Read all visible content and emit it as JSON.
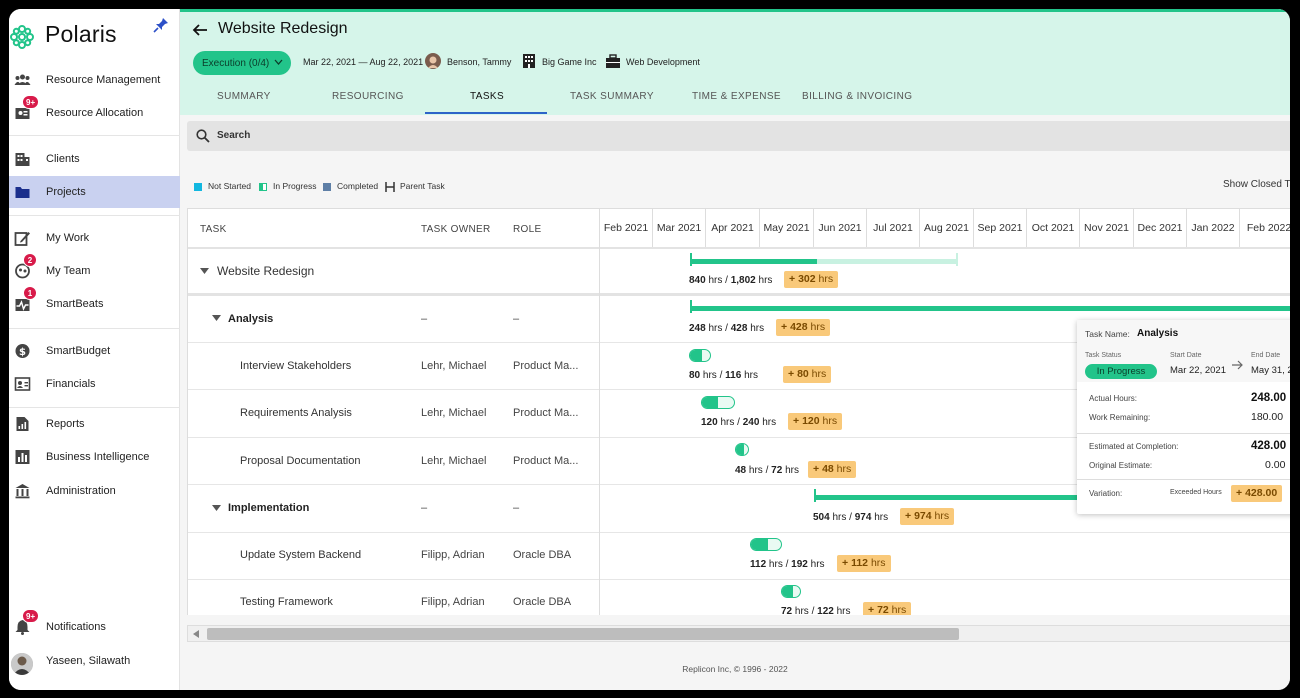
{
  "app": {
    "name": "Polaris"
  },
  "sidebar": {
    "items": [
      {
        "label": "Resource Management",
        "icon": "people-icon"
      },
      {
        "label": "Resource Allocation",
        "icon": "allocation-icon",
        "badge": "9+"
      },
      {
        "label": "Clients",
        "icon": "building-icon"
      },
      {
        "label": "Projects",
        "icon": "folder-icon",
        "active": true
      },
      {
        "label": "My Work",
        "icon": "edit-icon"
      },
      {
        "label": "My Team",
        "icon": "team-icon",
        "badge": "2"
      },
      {
        "label": "SmartBeats",
        "icon": "heartbeat-icon",
        "badge": "1"
      },
      {
        "label": "SmartBudget",
        "icon": "dollar-icon"
      },
      {
        "label": "Financials",
        "icon": "financials-icon"
      },
      {
        "label": "Reports",
        "icon": "report-icon"
      },
      {
        "label": "Business Intelligence",
        "icon": "chart-icon"
      },
      {
        "label": "Administration",
        "icon": "bank-icon"
      }
    ],
    "notifications": {
      "label": "Notifications",
      "badge": "9+"
    },
    "user": {
      "label": "Yaseen, Silawath"
    }
  },
  "header": {
    "title": "Website Redesign",
    "phase": "Execution (0/4)",
    "dates": "Mar 22, 2021 — Aug 22, 2021",
    "owner": "Benson, Tammy",
    "client": "Big Game Inc",
    "program": "Web Development",
    "tabs": [
      "SUMMARY",
      "RESOURCING",
      "TASKS",
      "TASK SUMMARY",
      "TIME & EXPENSE",
      "BILLING & INVOICING"
    ],
    "active_tab": "TASKS"
  },
  "search": {
    "placeholder": "Search"
  },
  "legend": {
    "not_started": "Not Started",
    "in_progress": "In Progress",
    "completed": "Completed",
    "parent_task": "Parent Task"
  },
  "show_closed": "Show Closed Ta",
  "columns": {
    "task": "TASK",
    "owner": "TASK OWNER",
    "role": "ROLE"
  },
  "months": [
    "Feb 2021",
    "Mar 2021",
    "Apr 2021",
    "May 2021",
    "Jun 2021",
    "Jul 2021",
    "Aug 2021",
    "Sep 2021",
    "Oct 2021",
    "Nov 2021",
    "Dec 2021",
    "Jan 2022",
    "Feb 2022"
  ],
  "rows": [
    {
      "name": "Website Redesign",
      "owner": "",
      "role": "",
      "actual": "840",
      "estimate": "1,802",
      "over": "302"
    },
    {
      "name": "Analysis",
      "owner": "–",
      "role": "–",
      "actual": "248",
      "estimate": "428",
      "over": "428"
    },
    {
      "name": "Interview Stakeholders",
      "owner": "Lehr, Michael",
      "role": "Product Ma...",
      "actual": "80",
      "estimate": "116",
      "over": "80"
    },
    {
      "name": "Requirements Analysis",
      "owner": "Lehr, Michael",
      "role": "Product Ma...",
      "actual": "120",
      "estimate": "240",
      "over": "120"
    },
    {
      "name": "Proposal Documentation",
      "owner": "Lehr, Michael",
      "role": "Product Ma...",
      "actual": "48",
      "estimate": "72",
      "over": "48"
    },
    {
      "name": "Implementation",
      "owner": "–",
      "role": "–",
      "actual": "504",
      "estimate": "974",
      "over": "974"
    },
    {
      "name": "Update System Backend",
      "owner": "Filipp, Adrian",
      "role": "Oracle DBA",
      "actual": "112",
      "estimate": "192",
      "over": "112"
    },
    {
      "name": "Testing Framework",
      "owner": "Filipp, Adrian",
      "role": "Oracle DBA",
      "actual": "72",
      "estimate": "122",
      "over": "72"
    }
  ],
  "hrs_unit": "hrs",
  "tooltip": {
    "task_name_label": "Task Name:",
    "task_name": "Analysis",
    "status_label": "Task Status",
    "status": "In Progress",
    "start_label": "Start Date",
    "start": "Mar 22, 2021",
    "end_label": "End Date",
    "end": "May 31, 2",
    "actual_label": "Actual Hours:",
    "actual": "248.00",
    "remaining_label": "Work Remaining:",
    "remaining": "180.00",
    "eac_label": "Estimated at Completion:",
    "eac": "428.00",
    "orig_label": "Original Estimate:",
    "orig": "0.00",
    "variation_label": "Variation:",
    "exceeded_label": "Exceeded Hours",
    "variation": "428.00"
  },
  "footer": "Replicon Inc, © 1996 - 2022",
  "colors": {
    "accent": "#22c48a",
    "header_bg": "#d6f5ea",
    "over_budget": "#f9c97a",
    "active_nav": "#c9d1f0"
  }
}
